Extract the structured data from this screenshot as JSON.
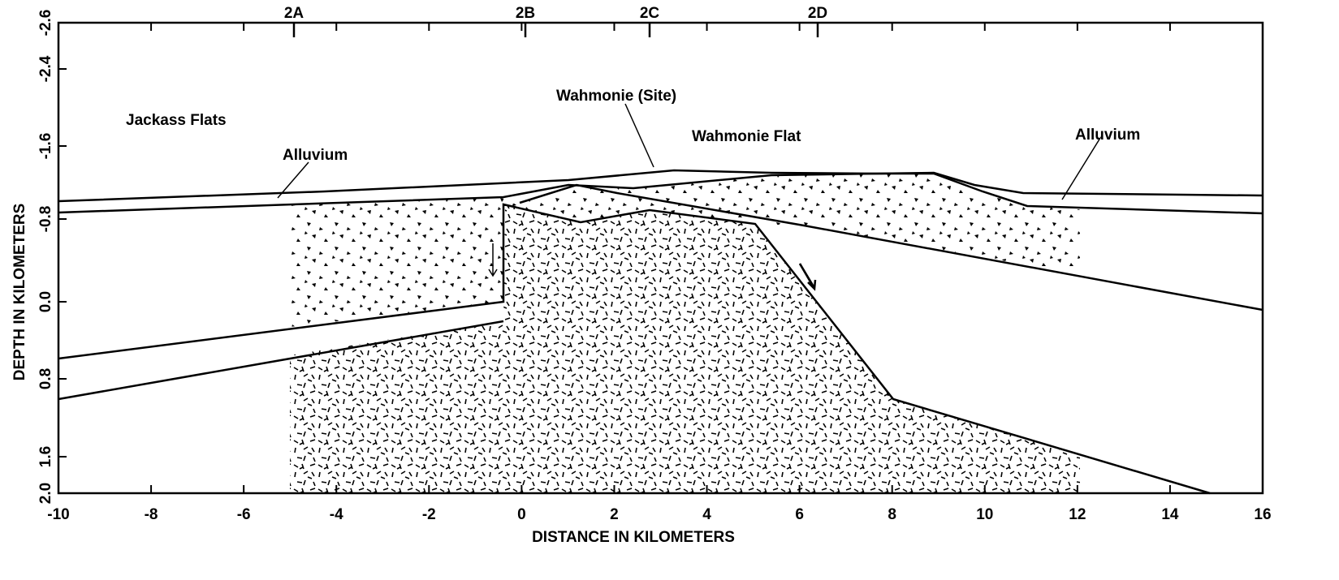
{
  "axes": {
    "x_label": "DISTANCE IN KILOMETERS",
    "y_label": "DEPTH IN KILOMETERS",
    "x_ticks": [
      "-10",
      "-8",
      "-6",
      "-4",
      "-2",
      "0",
      "2",
      "4",
      "6",
      "8",
      "10",
      "12",
      "14",
      "16"
    ],
    "y_ticks": [
      "-2.6",
      "-2.4",
      "-1.6",
      "-0.8",
      "0.0",
      "0.8",
      "1.6",
      "2.0"
    ],
    "top_ticks": [
      "2A",
      "2B",
      "2C",
      "2D"
    ]
  },
  "annotations": {
    "jackass_flats": "Jackass Flats",
    "wahmonie_site": "Wahmonie (Site)",
    "wahmonie_flat": "Wahmonie Flat",
    "alluvium_left": "Alluvium",
    "alluvium_right": "Alluvium"
  }
}
